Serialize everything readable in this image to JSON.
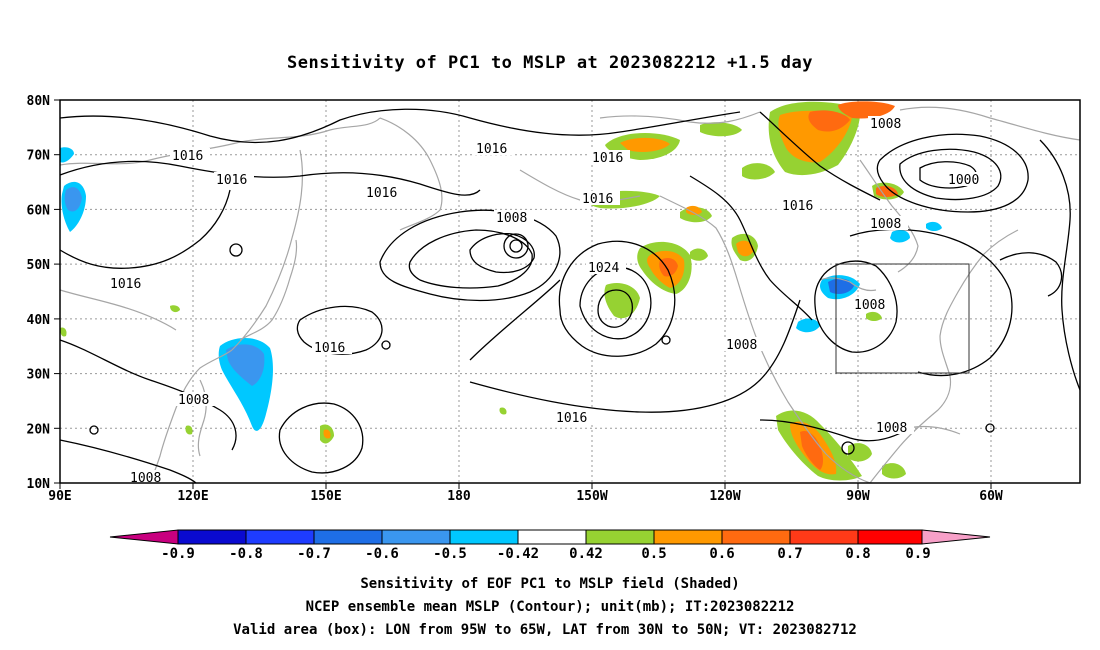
{
  "title": "Sensitivity of PC1 to MSLP at 2023082212 +1.5 day",
  "map": {
    "lat_ticks": [
      "80N",
      "70N",
      "60N",
      "50N",
      "40N",
      "30N",
      "20N",
      "10N"
    ],
    "lon_ticks": [
      "90E",
      "120E",
      "150E",
      "180",
      "150W",
      "120W",
      "90W",
      "60W"
    ],
    "extent": {
      "lon_west": "90E",
      "lon_east": "50W",
      "lat_south": "10N",
      "lat_north": "80N"
    },
    "valid_box": {
      "lon_from": "95W",
      "lon_to": "65W",
      "lat_from": "30N",
      "lat_to": "50N"
    },
    "contour_unit": "mb",
    "contour_labels": [
      "1016",
      "1016",
      "1016",
      "1016",
      "1016",
      "1016",
      "1016",
      "1016",
      "1016",
      "1016",
      "1008",
      "1008",
      "1008",
      "1008",
      "1008",
      "1008",
      "1008",
      "1008",
      "1000",
      "1024"
    ],
    "colors": {
      "coast": "#a6a6a6",
      "contour": "#000000",
      "grid": "#9a9a9a"
    }
  },
  "colorbar": {
    "labels": [
      "-0.9",
      "-0.8",
      "-0.7",
      "-0.6",
      "-0.5",
      "-0.42",
      "0.42",
      "0.5",
      "0.6",
      "0.7",
      "0.8",
      "0.9"
    ],
    "colors": [
      "#c8007f",
      "#0a0ad0",
      "#1e3cff",
      "#1e6ee6",
      "#3a96ef",
      "#00c8ff",
      "#ffffff",
      "#96d232",
      "#ff9900",
      "#ff6a10",
      "#ff3a18",
      "#ff0000",
      "#f7a0c8"
    ]
  },
  "captions": [
    "Sensitivity of EOF PC1 to MSLP field (Shaded)",
    "NCEP ensemble mean MSLP (Contour); unit(mb); IT:2023082212",
    "Valid area (box): LON from 95W to 65W, LAT from 30N to 50N; VT: 2023082712"
  ]
}
